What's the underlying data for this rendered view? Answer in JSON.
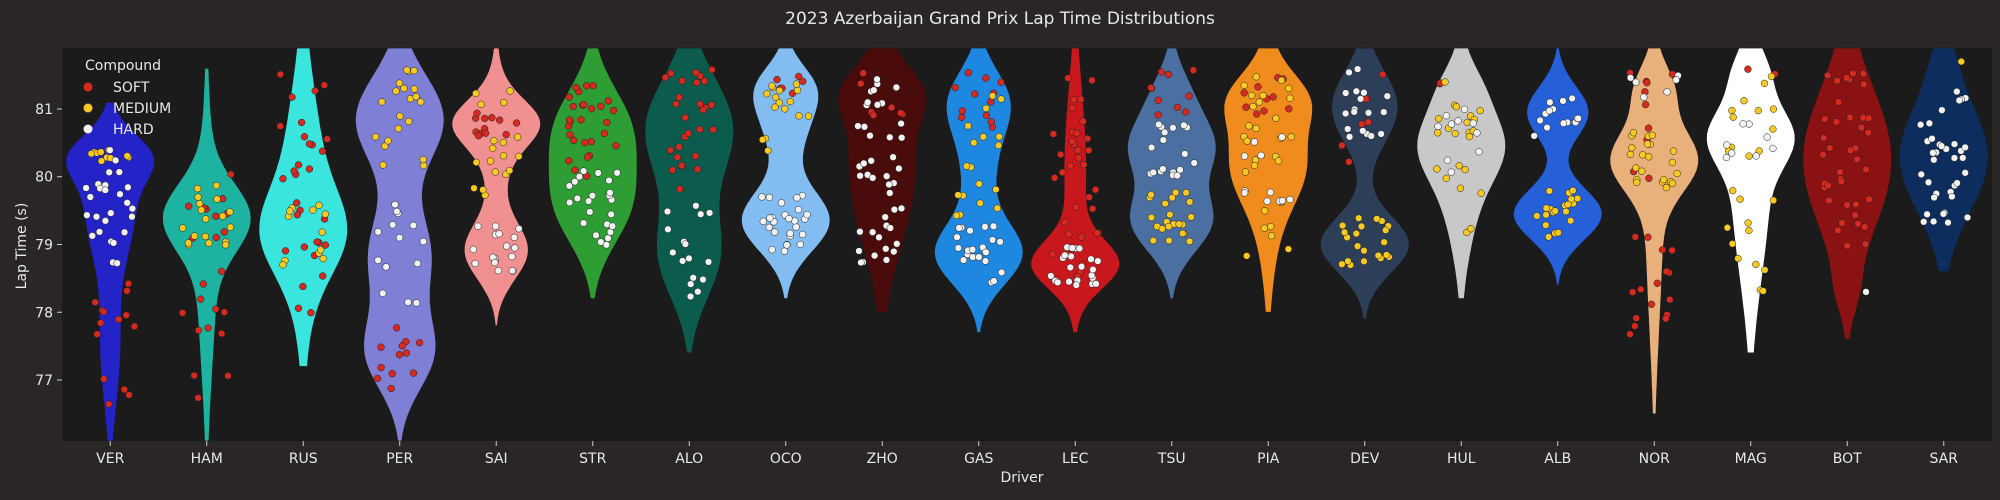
{
  "chart_data": {
    "type": "violin-swarm",
    "title": "2023 Azerbaijan Grand Prix Lap Time Distributions",
    "xlabel": "Driver",
    "ylabel": "Lap Time (s)",
    "ylim": [
      76.1,
      81.9
    ],
    "yticks": [
      77,
      78,
      79,
      80,
      81
    ],
    "legend": {
      "title": "Compound",
      "position": "top-left",
      "entries": [
        {
          "name": "SOFT",
          "color": "#d62a20"
        },
        {
          "name": "MEDIUM",
          "color": "#f7c923"
        },
        {
          "name": "HARD",
          "color": "#f2f2f2"
        }
      ]
    },
    "drivers": [
      {
        "code": "VER",
        "color": "#2323c8",
        "groups": [
          {
            "compound": "SOFT",
            "min": 76.4,
            "max": 78.6,
            "n": 14
          },
          {
            "compound": "MEDIUM",
            "min": 80.2,
            "max": 80.4,
            "n": 10
          },
          {
            "compound": "HARD",
            "min": 78.7,
            "max": 80.4,
            "n": 26
          }
        ]
      },
      {
        "code": "HAM",
        "color": "#1eb3a0",
        "groups": [
          {
            "compound": "SOFT",
            "min": 76.7,
            "max": 80.9,
            "n": 22
          },
          {
            "compound": "MEDIUM",
            "min": 78.9,
            "max": 79.9,
            "n": 18
          }
        ]
      },
      {
        "code": "RUS",
        "color": "#39e5dd",
        "groups": [
          {
            "compound": "SOFT",
            "min": 77.9,
            "max": 81.6,
            "n": 30
          },
          {
            "compound": "MEDIUM",
            "min": 78.5,
            "max": 79.8,
            "n": 12
          }
        ]
      },
      {
        "code": "PER",
        "color": "#7f7fd6",
        "groups": [
          {
            "compound": "SOFT",
            "min": 76.8,
            "max": 78.0,
            "n": 12
          },
          {
            "compound": "MEDIUM",
            "min": 80.1,
            "max": 81.6,
            "n": 20
          },
          {
            "compound": "HARD",
            "min": 78.1,
            "max": 79.6,
            "n": 14
          }
        ]
      },
      {
        "code": "SAI",
        "color": "#f09090",
        "groups": [
          {
            "compound": "SOFT",
            "min": 80.6,
            "max": 81.0,
            "n": 12
          },
          {
            "compound": "MEDIUM",
            "min": 79.7,
            "max": 81.4,
            "n": 18
          },
          {
            "compound": "HARD",
            "min": 78.5,
            "max": 79.3,
            "n": 18
          }
        ]
      },
      {
        "code": "STR",
        "color": "#2e9e34",
        "groups": [
          {
            "compound": "SOFT",
            "min": 80.0,
            "max": 81.4,
            "n": 28
          },
          {
            "compound": "HARD",
            "min": 78.9,
            "max": 80.2,
            "n": 24
          }
        ]
      },
      {
        "code": "ALO",
        "color": "#0c5c4e",
        "groups": [
          {
            "compound": "SOFT",
            "min": 79.8,
            "max": 81.6,
            "n": 28
          },
          {
            "compound": "HARD",
            "min": 78.1,
            "max": 79.6,
            "n": 16
          }
        ]
      },
      {
        "code": "OCO",
        "color": "#82bcf0",
        "groups": [
          {
            "compound": "SOFT",
            "min": 81.2,
            "max": 81.5,
            "n": 6
          },
          {
            "compound": "MEDIUM",
            "min": 80.3,
            "max": 81.4,
            "n": 16
          },
          {
            "compound": "HARD",
            "min": 78.9,
            "max": 79.8,
            "n": 26
          }
        ]
      },
      {
        "code": "ZHO",
        "color": "#4a0b0b",
        "groups": [
          {
            "compound": "SOFT",
            "min": 80.9,
            "max": 81.6,
            "n": 8
          },
          {
            "compound": "HARD",
            "min": 78.7,
            "max": 81.5,
            "n": 44
          }
        ]
      },
      {
        "code": "GAS",
        "color": "#1e88e0",
        "groups": [
          {
            "compound": "SOFT",
            "min": 80.7,
            "max": 81.6,
            "n": 12
          },
          {
            "compound": "MEDIUM",
            "min": 79.4,
            "max": 81.2,
            "n": 18
          },
          {
            "compound": "HARD",
            "min": 78.4,
            "max": 79.3,
            "n": 22
          }
        ]
      },
      {
        "code": "LEC",
        "color": "#c8181e",
        "groups": [
          {
            "compound": "SOFT",
            "min": 78.5,
            "max": 81.7,
            "n": 34
          },
          {
            "compound": "HARD",
            "min": 78.4,
            "max": 79.0,
            "n": 22
          }
        ]
      },
      {
        "code": "TSU",
        "color": "#4a6fa0",
        "groups": [
          {
            "compound": "SOFT",
            "min": 80.7,
            "max": 81.6,
            "n": 10
          },
          {
            "compound": "MEDIUM",
            "min": 78.9,
            "max": 79.8,
            "n": 22
          },
          {
            "compound": "HARD",
            "min": 80.0,
            "max": 80.8,
            "n": 18
          }
        ]
      },
      {
        "code": "PIA",
        "color": "#f08c1e",
        "groups": [
          {
            "compound": "SOFT",
            "min": 80.8,
            "max": 81.5,
            "n": 10
          },
          {
            "compound": "MEDIUM",
            "min": 78.7,
            "max": 81.7,
            "n": 28
          },
          {
            "compound": "HARD",
            "min": 79.6,
            "max": 80.7,
            "n": 12
          }
        ]
      },
      {
        "code": "DEV",
        "color": "#2d3e59",
        "groups": [
          {
            "compound": "SOFT",
            "min": 80.2,
            "max": 81.6,
            "n": 6
          },
          {
            "compound": "MEDIUM",
            "min": 78.6,
            "max": 79.4,
            "n": 22
          },
          {
            "compound": "HARD",
            "min": 80.5,
            "max": 81.6,
            "n": 18
          }
        ]
      },
      {
        "code": "HUL",
        "color": "#c8c8c8",
        "groups": [
          {
            "compound": "SOFT",
            "min": 81.3,
            "max": 81.4,
            "n": 2
          },
          {
            "compound": "MEDIUM",
            "min": 78.9,
            "max": 81.4,
            "n": 22
          },
          {
            "compound": "HARD",
            "min": 80.0,
            "max": 81.0,
            "n": 10
          }
        ]
      },
      {
        "code": "ALB",
        "color": "#2560d8",
        "groups": [
          {
            "compound": "MEDIUM",
            "min": 79.1,
            "max": 79.8,
            "n": 20
          },
          {
            "compound": "HARD",
            "min": 80.6,
            "max": 81.3,
            "n": 14
          }
        ]
      },
      {
        "code": "NOR",
        "color": "#e8b07a",
        "groups": [
          {
            "compound": "SOFT",
            "min": 77.2,
            "max": 81.6,
            "n": 26
          },
          {
            "compound": "MEDIUM",
            "min": 79.8,
            "max": 80.7,
            "n": 22
          },
          {
            "compound": "HARD",
            "min": 81.0,
            "max": 81.6,
            "n": 6
          }
        ]
      },
      {
        "code": "MAG",
        "color": "#ffffff",
        "groups": [
          {
            "compound": "SOFT",
            "min": 81.5,
            "max": 81.6,
            "n": 2
          },
          {
            "compound": "MEDIUM",
            "min": 78.1,
            "max": 81.6,
            "n": 24
          },
          {
            "compound": "HARD",
            "min": 80.2,
            "max": 81.0,
            "n": 8
          }
        ]
      },
      {
        "code": "BOT",
        "color": "#8b1212",
        "groups": [
          {
            "compound": "SOFT",
            "min": 78.9,
            "max": 81.6,
            "n": 40
          },
          {
            "compound": "HARD",
            "min": 78.3,
            "max": 78.3,
            "n": 1
          }
        ]
      },
      {
        "code": "SAR",
        "color": "#0c2d5e",
        "groups": [
          {
            "compound": "MEDIUM",
            "min": 81.7,
            "max": 81.7,
            "n": 1
          },
          {
            "compound": "HARD",
            "min": 79.3,
            "max": 81.3,
            "n": 36
          }
        ]
      }
    ]
  }
}
